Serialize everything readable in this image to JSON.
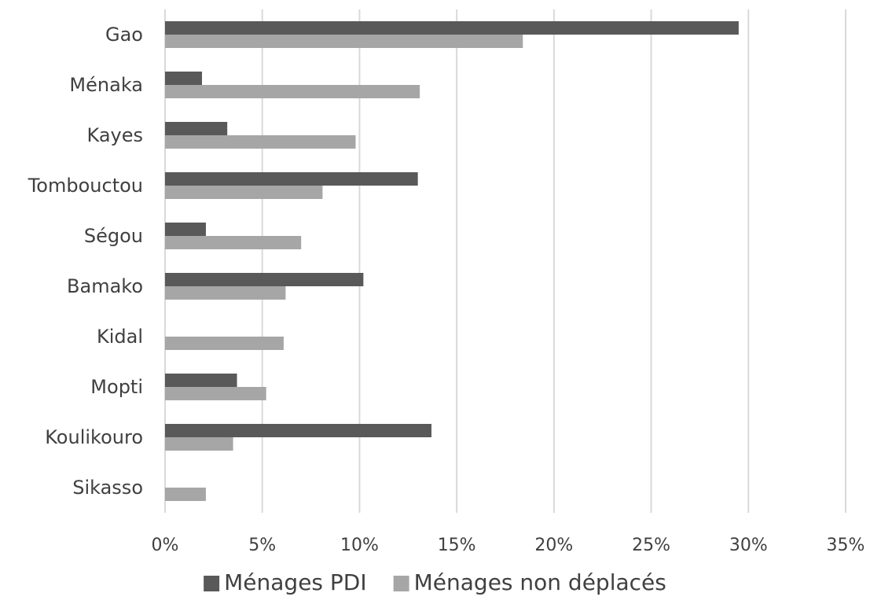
{
  "chart_data": {
    "type": "bar",
    "orientation": "horizontal",
    "categories": [
      "Gao",
      "Ménaka",
      "Kayes",
      "Tombouctou",
      "Ségou",
      "Bamako",
      "Kidal",
      "Mopti",
      "Koulikouro",
      "Sikasso"
    ],
    "series": [
      {
        "name": "Ménages PDI",
        "color": "#595959",
        "values": [
          29.5,
          1.9,
          3.2,
          13.0,
          2.1,
          10.2,
          0,
          3.7,
          13.7,
          0
        ]
      },
      {
        "name": "Ménages non déplacés",
        "color": "#a6a6a6",
        "values": [
          18.4,
          13.1,
          9.8,
          8.1,
          7.0,
          6.2,
          6.1,
          5.2,
          3.5,
          2.1
        ]
      }
    ],
    "xlim": [
      0,
      35
    ],
    "xticks": [
      0,
      5,
      10,
      15,
      20,
      25,
      30,
      35
    ],
    "xtick_labels": [
      "0%",
      "5%",
      "10%",
      "15%",
      "20%",
      "25%",
      "30%",
      "35%"
    ],
    "grid": "vertical",
    "legend_position": "bottom",
    "title": "",
    "xlabel": "",
    "ylabel": ""
  }
}
